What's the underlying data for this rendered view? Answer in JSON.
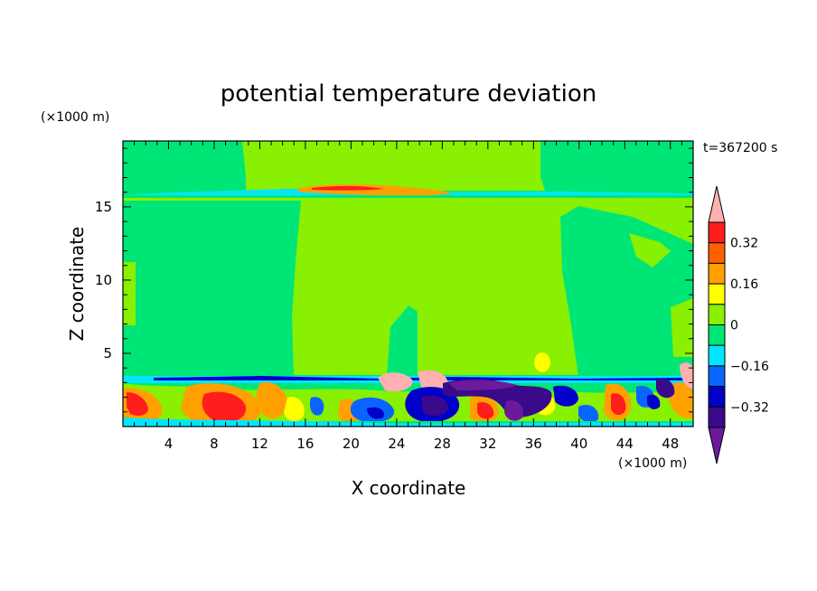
{
  "chart_data": {
    "type": "heatmap",
    "title": "potential temperature deviation",
    "xlabel": "X coordinate",
    "ylabel": "Z coordinate",
    "x_unit": "(×1000 m)",
    "y_unit": "(×1000 m)",
    "time_label": "t=367200 s",
    "xlim": [
      0,
      50
    ],
    "ylim": [
      0,
      19.5
    ],
    "x_ticks": [
      4,
      8,
      12,
      16,
      20,
      24,
      28,
      32,
      36,
      40,
      44,
      48
    ],
    "y_ticks": [
      5,
      10,
      15
    ],
    "colorbar": {
      "levels": [
        -0.4,
        -0.32,
        -0.24,
        -0.16,
        -0.08,
        0,
        0.08,
        0.16,
        0.24,
        0.32,
        0.4
      ],
      "labeled_levels": [
        0.32,
        0.16,
        0,
        -0.16,
        -0.32
      ],
      "colors": [
        "#6a1a9a",
        "#3a0a8a",
        "#0000c8",
        "#0a64ff",
        "#00e6ff",
        "#00e676",
        "#88f000",
        "#ffff00",
        "#ffa000",
        "#ff6000",
        "#ff1e1e",
        "#ffb0b0"
      ],
      "extend": "both"
    }
  }
}
